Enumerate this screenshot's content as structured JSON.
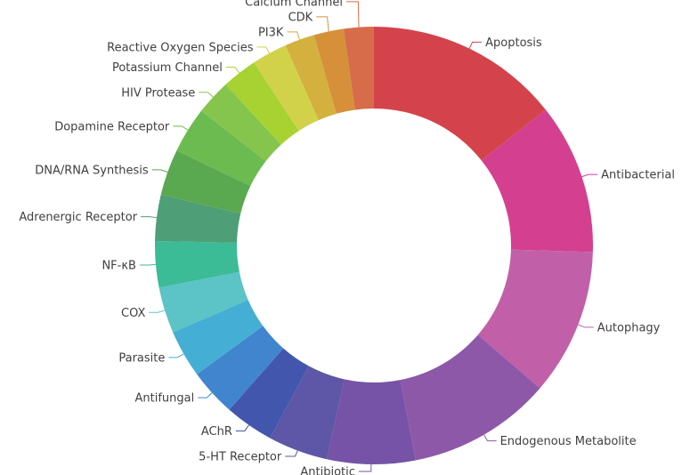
{
  "chart_data": {
    "type": "pie",
    "variant": "donut",
    "title": "",
    "legend": "none",
    "labels": "outside with leader lines",
    "order": "clockwise from top, largest first",
    "categories": [
      "Apoptosis",
      "Antibacterial",
      "Autophagy",
      "Endogenous Metabolite",
      "Antibiotic",
      "5-HT Receptor",
      "AChR",
      "Antifungal",
      "Parasite",
      "COX",
      "NF-κB",
      "Adrenergic Receptor",
      "DNA/RNA Synthesis",
      "Dopamine Receptor",
      "HIV Protease",
      "Potassium Channel",
      "Reactive Oxygen Species",
      "PI3K",
      "CDK",
      "Calcium Channel"
    ],
    "values": [
      14.3,
      11.1,
      10.8,
      10.6,
      6.5,
      4.4,
      3.6,
      3.5,
      3.5,
      3.4,
      3.4,
      3.4,
      3.4,
      3.4,
      2.6,
      2.6,
      2.6,
      2.2,
      2.2,
      2.2
    ],
    "colors": [
      "#d4434b",
      "#d4408f",
      "#c160a8",
      "#8e58a8",
      "#7653a6",
      "#5e56a6",
      "#4356ad",
      "#4185cf",
      "#45aed4",
      "#5cc3c7",
      "#3bbb96",
      "#4e9e77",
      "#5aa84f",
      "#6cbb50",
      "#86c54d",
      "#a8d232",
      "#d2d24a",
      "#d4b03e",
      "#d6903a",
      "#d66c4a"
    ]
  }
}
